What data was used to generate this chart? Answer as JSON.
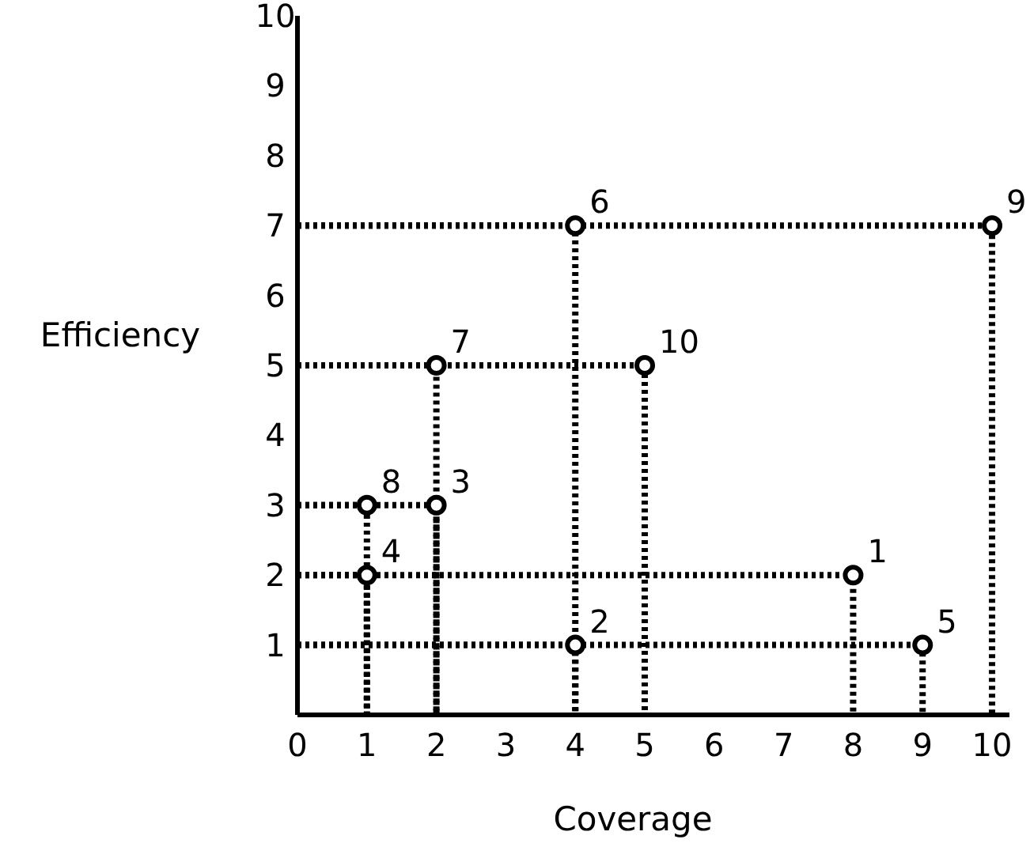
{
  "chart_data": {
    "type": "scatter",
    "xlabel": "Coverage",
    "ylabel": "Efficiency",
    "series": [
      {
        "marker": "circle",
        "color": "#000000",
        "x": [
          8,
          4,
          2,
          1,
          9,
          4,
          2,
          1,
          10,
          5
        ],
        "values": [
          2,
          1,
          3,
          2,
          1,
          7,
          5,
          3,
          7,
          5
        ]
      },
      {
        "type": "line",
        "line_style": "dotted",
        "color": "#000000",
        "x": [
          0,
          8,
          8
        ],
        "values": [
          2,
          2,
          0
        ]
      },
      {
        "type": "line",
        "line_style": "dotted",
        "color": "#000000",
        "x": [
          0,
          4,
          4
        ],
        "values": [
          1,
          1,
          0
        ]
      },
      {
        "type": "line",
        "line_style": "dotted",
        "color": "#000000",
        "x": [
          0,
          2,
          2
        ],
        "values": [
          3,
          3,
          0
        ]
      },
      {
        "type": "line",
        "line_style": "dotted",
        "color": "#000000",
        "x": [
          0,
          1,
          1
        ],
        "values": [
          2,
          2,
          0
        ]
      },
      {
        "type": "line",
        "line_style": "dotted",
        "color": "#000000",
        "x": [
          0,
          9,
          9
        ],
        "values": [
          1,
          1,
          0
        ]
      },
      {
        "type": "line",
        "line_style": "dotted",
        "color": "#000000",
        "x": [
          0,
          4,
          4
        ],
        "values": [
          7,
          7,
          0
        ]
      },
      {
        "type": "line",
        "line_style": "dotted",
        "color": "#000000",
        "x": [
          0,
          2,
          2
        ],
        "values": [
          5,
          5,
          0
        ]
      },
      {
        "type": "line",
        "line_style": "dotted",
        "color": "#000000",
        "x": [
          0,
          1,
          1
        ],
        "values": [
          3,
          3,
          0
        ]
      },
      {
        "type": "line",
        "line_style": "dotted",
        "color": "#000000",
        "x": [
          0,
          10,
          10
        ],
        "values": [
          7,
          7,
          0
        ]
      },
      {
        "type": "line",
        "line_style": "dotted",
        "color": "#000000",
        "x": [
          0,
          5,
          5
        ],
        "values": [
          5,
          5,
          0
        ]
      }
    ],
    "grid": false,
    "xlim": [
      0,
      10.25
    ],
    "xticks": [
      0,
      1,
      2,
      3,
      4,
      5,
      6,
      7,
      8,
      9,
      10
    ],
    "ylim": [
      0,
      10
    ],
    "yticks": [
      1,
      2,
      3,
      4,
      5,
      6,
      7,
      8,
      9,
      10
    ],
    "annotations": [
      {
        "text": "1",
        "x": 8,
        "y": 2
      },
      {
        "text": "2",
        "x": 4,
        "y": 1
      },
      {
        "text": "3",
        "x": 2,
        "y": 3
      },
      {
        "text": "4",
        "x": 1,
        "y": 2
      },
      {
        "text": "5",
        "x": 9,
        "y": 1
      },
      {
        "text": "6",
        "x": 4,
        "y": 7
      },
      {
        "text": "7",
        "x": 2,
        "y": 5
      },
      {
        "text": "8",
        "x": 1,
        "y": 3
      },
      {
        "text": "9",
        "x": 10,
        "y": 7
      },
      {
        "text": "10",
        "x": 5,
        "y": 5
      }
    ]
  }
}
